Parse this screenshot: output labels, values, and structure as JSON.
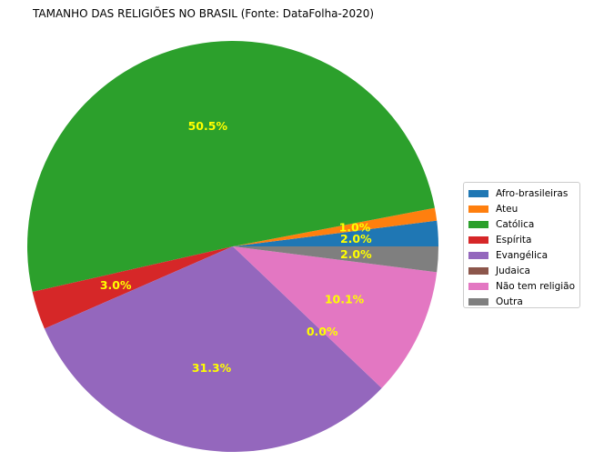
{
  "chart_data": {
    "type": "pie",
    "title": "TAMANHO DAS RELIGIÕES NO BRASIL (Fonte: DataFolha-2020)",
    "labels": [
      "Afro-brasileiras",
      "Ateu",
      "Católica",
      "Espírita",
      "Evangélica",
      "Judaica",
      "Não tem religião",
      "Outra"
    ],
    "values": [
      2.0,
      1.0,
      50.5,
      3.0,
      31.3,
      0.0,
      10.1,
      2.0
    ],
    "value_labels": [
      "2.0%",
      "1.0%",
      "50.5%",
      "3.0%",
      "31.3%",
      "0.0%",
      "10.1%",
      "2.0%"
    ],
    "colors": [
      "#1f77b4",
      "#ff7f0e",
      "#2ca02c",
      "#d62728",
      "#9467bd",
      "#8c564b",
      "#e377c2",
      "#7f7f7f"
    ],
    "label_color": "#ffff00",
    "start_angle_deg": 0,
    "direction": "counterclockwise",
    "legend_position": "right",
    "legend_entries": [
      "Afro-brasileiras",
      "Ateu",
      "Católica",
      "Espírita",
      "Evangélica",
      "Judaica",
      "Não tem religião",
      "Outra"
    ]
  }
}
